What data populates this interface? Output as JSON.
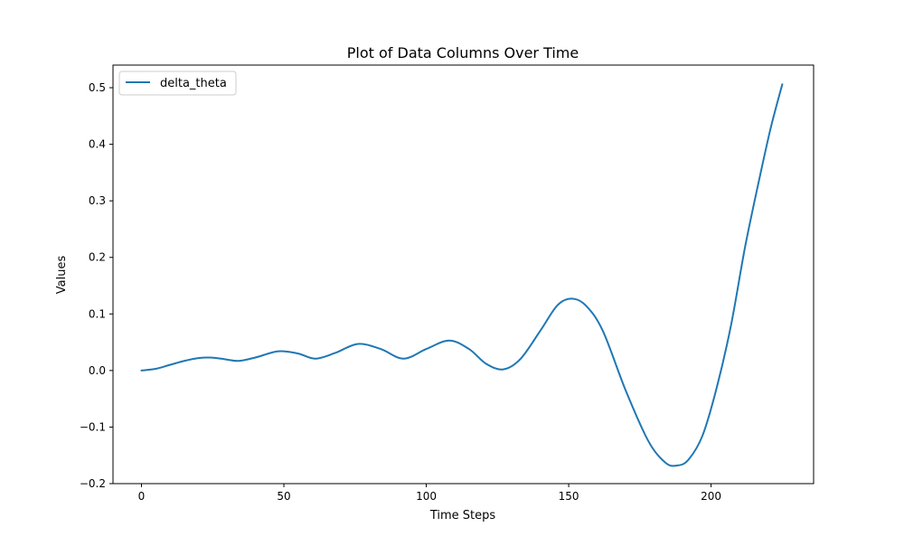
{
  "chart_data": {
    "type": "line",
    "title": "Plot of Data Columns Over Time",
    "xlabel": "Time Steps",
    "ylabel": "Values",
    "xlim": [
      -10,
      236
    ],
    "ylim": [
      -0.2,
      0.54
    ],
    "xticks": [
      0,
      50,
      100,
      150,
      200
    ],
    "yticks": [
      -0.2,
      -0.1,
      0.0,
      0.1,
      0.2,
      0.3,
      0.4,
      0.5
    ],
    "ytick_labels": [
      "−0.2",
      "−0.1",
      "0.0",
      "0.1",
      "0.2",
      "0.3",
      "0.4",
      "0.5"
    ],
    "xtick_labels": [
      "0",
      "50",
      "100",
      "150",
      "200"
    ],
    "grid": false,
    "legend": {
      "placement": "upper-left"
    },
    "series": [
      {
        "name": "delta_theta",
        "color": "#1f77b4",
        "x": [
          0,
          5,
          10,
          15,
          20,
          24,
          28,
          34,
          40,
          48,
          55,
          61,
          68,
          76,
          84,
          92,
          100,
          108,
          115,
          121,
          127,
          133,
          140,
          146,
          151,
          156,
          162,
          170,
          178,
          184,
          188,
          192,
          197,
          202,
          207,
          212,
          217,
          221,
          225
        ],
        "y": [
          0.0,
          0.003,
          0.01,
          0.017,
          0.022,
          0.023,
          0.021,
          0.017,
          0.023,
          0.034,
          0.03,
          0.021,
          0.031,
          0.047,
          0.038,
          0.021,
          0.038,
          0.053,
          0.038,
          0.012,
          0.002,
          0.02,
          0.07,
          0.115,
          0.127,
          0.115,
          0.07,
          -0.035,
          -0.125,
          -0.163,
          -0.168,
          -0.158,
          -0.115,
          -0.03,
          0.08,
          0.22,
          0.34,
          0.43,
          0.506
        ]
      }
    ]
  }
}
